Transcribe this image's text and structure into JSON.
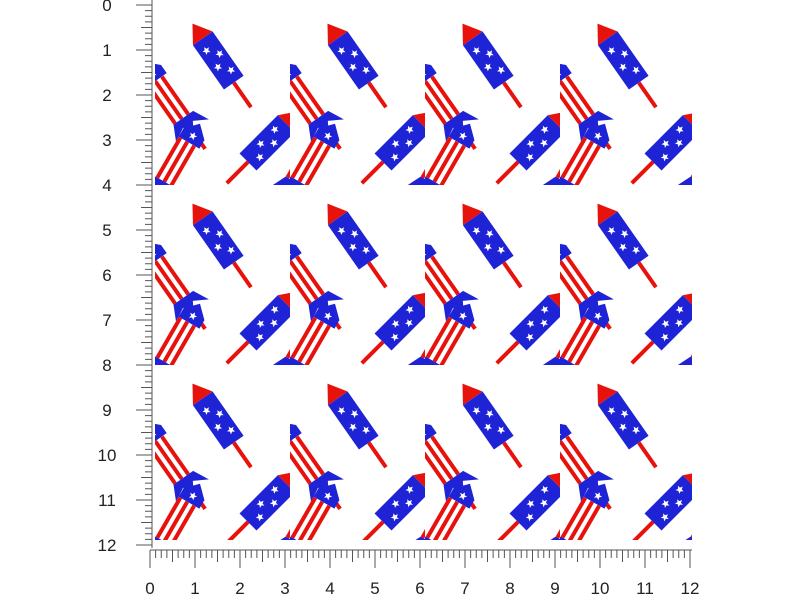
{
  "left_ruler": {
    "labels": [
      0,
      1,
      2,
      3,
      4,
      5,
      6,
      7,
      8,
      9,
      10,
      11,
      12
    ]
  },
  "bottom_ruler": {
    "labels": [
      0,
      1,
      2,
      3,
      4,
      5,
      6,
      7,
      8,
      9,
      10,
      11,
      12
    ]
  }
}
